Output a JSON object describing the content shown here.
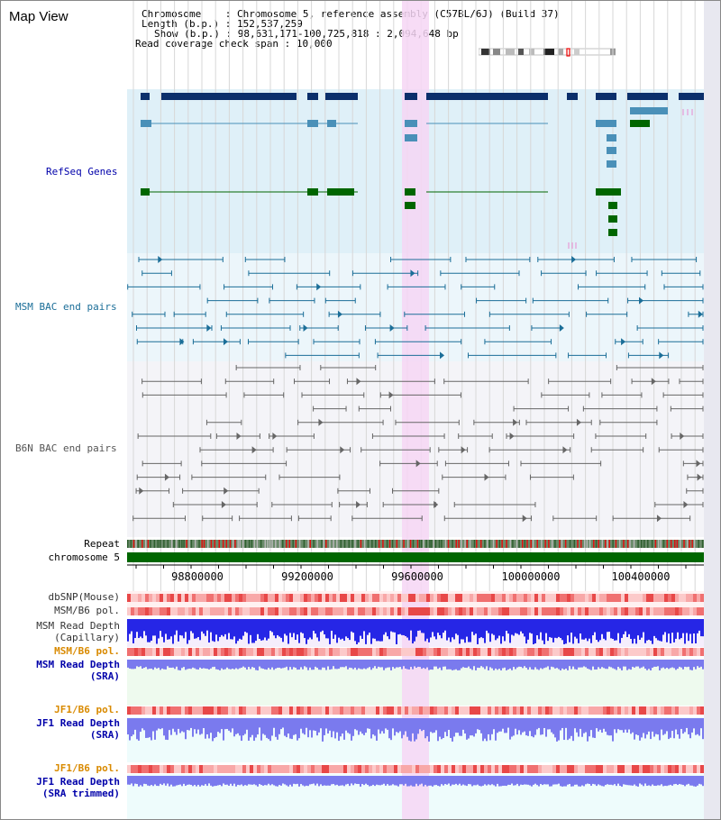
{
  "title": "Map View",
  "info": {
    "chromosome_label": "Chromosome",
    "chromosome_value": "Chromosome 5, reference assembly (C57BL/6J) (Build 37)",
    "length_label": "Length (b.p.)",
    "length_value": "152,537,259",
    "show_label": "Show (b.p.)",
    "show_value": "98,631,171-100,725,818 : 2,094,648 bp",
    "coverage_label": "Read coverage check span",
    "coverage_value": "10,000"
  },
  "tracks": {
    "refseq": "RefSeq Genes",
    "msm_bac": "MSM BAC end pairs",
    "b6n_bac": "B6N BAC end pairs",
    "repeat": "Repeat",
    "chromosome": "chromosome 5",
    "dbsnp": "dbSNP(Mouse)",
    "msm_b6_pol_1": "MSM/B6 pol.",
    "msm_read_depth_cap_1": "MSM Read Depth",
    "msm_read_depth_cap_2": "(Capillary)",
    "msm_b6_pol_2": "MSM/B6 pol.",
    "msm_read_depth_sra_1": "MSM Read Depth",
    "msm_read_depth_sra_2": "(SRA)",
    "jf1_b6_pol_1": "JF1/B6 pol.",
    "jf1_read_depth_sra_1": "JF1 Read Depth",
    "jf1_read_depth_sra_2": "(SRA)",
    "jf1_b6_pol_2": "JF1/B6 pol.",
    "jf1_read_depth_trim_1": "JF1 Read Depth",
    "jf1_read_depth_trim_2": "(SRA trimmed)"
  },
  "axis": {
    "ticks": [
      "98800000",
      "99200000",
      "99600000",
      "100000000",
      "100400000"
    ]
  },
  "colors": {
    "refseq_bg": "#dff0f8",
    "msm_bg": "#ecf6fb",
    "b6n_bg": "#f4f4f8",
    "highlight": "#f6d6f4",
    "gene_dark": "#0b2f6b",
    "gene_mid": "#4a90b8",
    "gene_green": "#006600",
    "msm_line": "#1b6e98",
    "b6n_line": "#555555",
    "chromosome": "#006600",
    "depth_blue": "#2626e6",
    "depth_light": "#7a7aee",
    "label_blue": "#0000aa",
    "label_teal": "#1b6e98",
    "label_orange": "#d98a00"
  }
}
